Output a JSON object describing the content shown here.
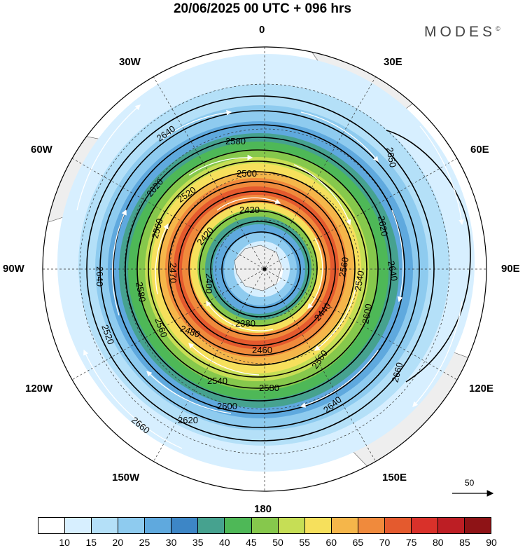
{
  "title": "20/06/2025  00 UTC  + 096 hrs",
  "brand": "MODES",
  "brand_mark": "©",
  "longitude_labels": {
    "n": "0",
    "ne": "30E",
    "ene": "60E",
    "e": "90E",
    "ese": "120E",
    "se": "150E",
    "s": "180",
    "sw": "150W",
    "wsw": "120W",
    "w": "90W",
    "wnw": "60W",
    "nw": "30W"
  },
  "contour_labels": [
    "2640",
    "2580",
    "2500",
    "2420",
    "2520",
    "2560",
    "2420",
    "2620",
    "2650",
    "2620",
    "2640",
    "2560",
    "2540",
    "2640",
    "2470",
    "2400",
    "2580",
    "2560",
    "2520",
    "2480",
    "2440",
    "2600",
    "2380",
    "2460",
    "2540",
    "2560",
    "2580",
    "2600",
    "2620",
    "2640",
    "2660",
    "2660"
  ],
  "colorbar": {
    "ticks": [
      "10",
      "15",
      "20",
      "25",
      "30",
      "35",
      "40",
      "45",
      "50",
      "55",
      "60",
      "65",
      "70",
      "75",
      "80",
      "85",
      "90"
    ],
    "colors": [
      "#ffffff",
      "#d7efff",
      "#b4e0f8",
      "#8ecbef",
      "#5fa9de",
      "#3d86c6",
      "#46a28f",
      "#4eb857",
      "#86c84c",
      "#c6de55",
      "#f6e05c",
      "#f5b64a",
      "#f08a3c",
      "#e45a2e",
      "#d9312a",
      "#bd1e24",
      "#8e1316"
    ]
  },
  "vector_reference": "50"
}
